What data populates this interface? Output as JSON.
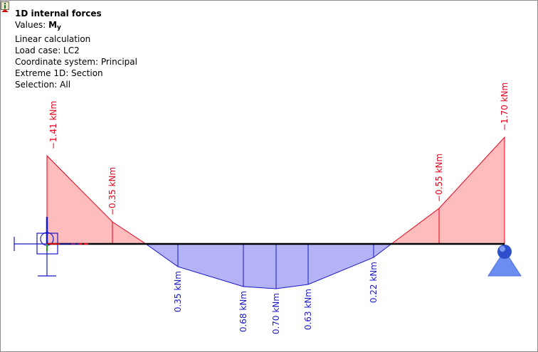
{
  "panel": {
    "title": "1D internal forces",
    "values_prefix": "Values: ",
    "values_symbol": "M",
    "values_subscript": "y",
    "calculation": "Linear calculation",
    "load_case": "Load case: LC2",
    "coordinate_system": "Coordinate system: Principal",
    "extreme": "Extreme 1D: Section",
    "selection": "Selection: All"
  },
  "icons": {
    "info": "info-icon",
    "hinged_support": "hinged-support-icon",
    "roller_support": "roller-support-icon",
    "local_axes": "local-axes-icon"
  },
  "colors": {
    "negative_fill": "#ffbcbc",
    "negative_line": "#e8001c",
    "positive_fill": "#b3b3f5",
    "positive_line": "#1818c8",
    "beam": "#000000",
    "support": "#3a5fd6"
  },
  "diagram_labels": {
    "left_end": "−1.41 kNm",
    "left_inner": "−0.35 kNm",
    "s1": "0.35 kNm",
    "s2": "0.68 kNm",
    "s3": "0.70 kNm",
    "s4": "0.63 kNm",
    "s5": "0.22 kNm",
    "right_inner": "−0.55 kNm",
    "right_end": "−1.70 kNm"
  }
}
